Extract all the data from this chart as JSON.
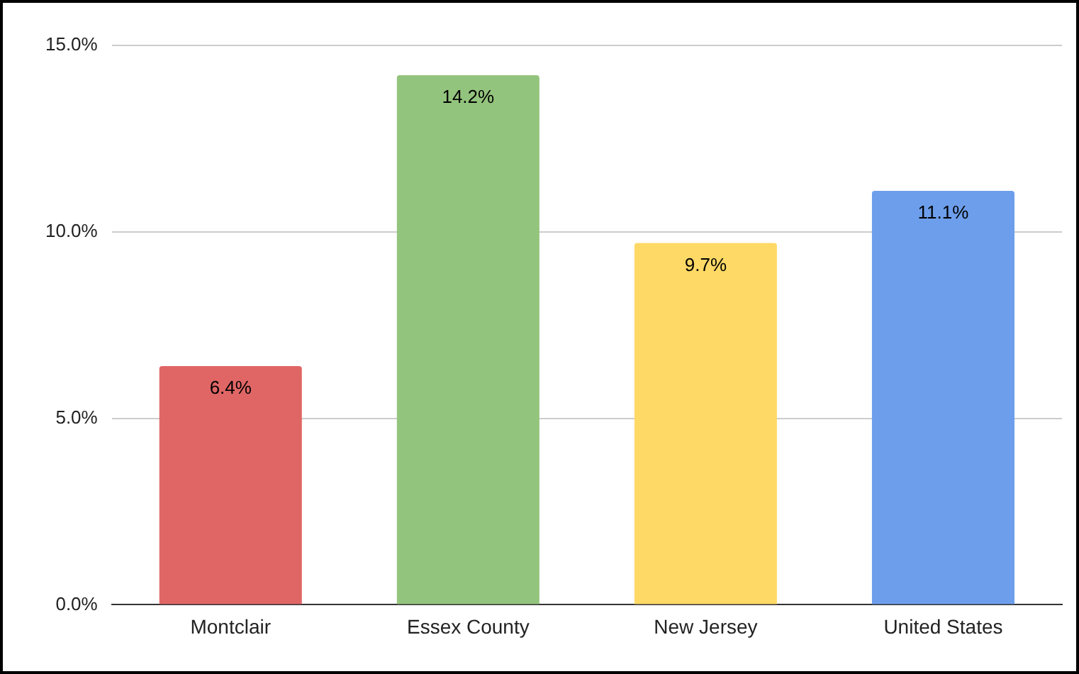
{
  "chart_data": {
    "type": "bar",
    "categories": [
      "Montclair",
      "Essex County",
      "New Jersey",
      "United States"
    ],
    "values": [
      6.4,
      14.2,
      9.7,
      11.1
    ],
    "colors": [
      "#e06666",
      "#93c47d",
      "#ffd966",
      "#6d9eeb"
    ],
    "value_labels": [
      "6.4%",
      "14.2%",
      "9.7%",
      "11.1%"
    ],
    "ylim": [
      0,
      15
    ],
    "yticks": [
      {
        "value": 0,
        "label": "0.0%"
      },
      {
        "value": 5,
        "label": "5.0%"
      },
      {
        "value": 10,
        "label": "10.0%"
      },
      {
        "value": 15,
        "label": "15.0%"
      }
    ],
    "grid": "y",
    "legend": false
  }
}
